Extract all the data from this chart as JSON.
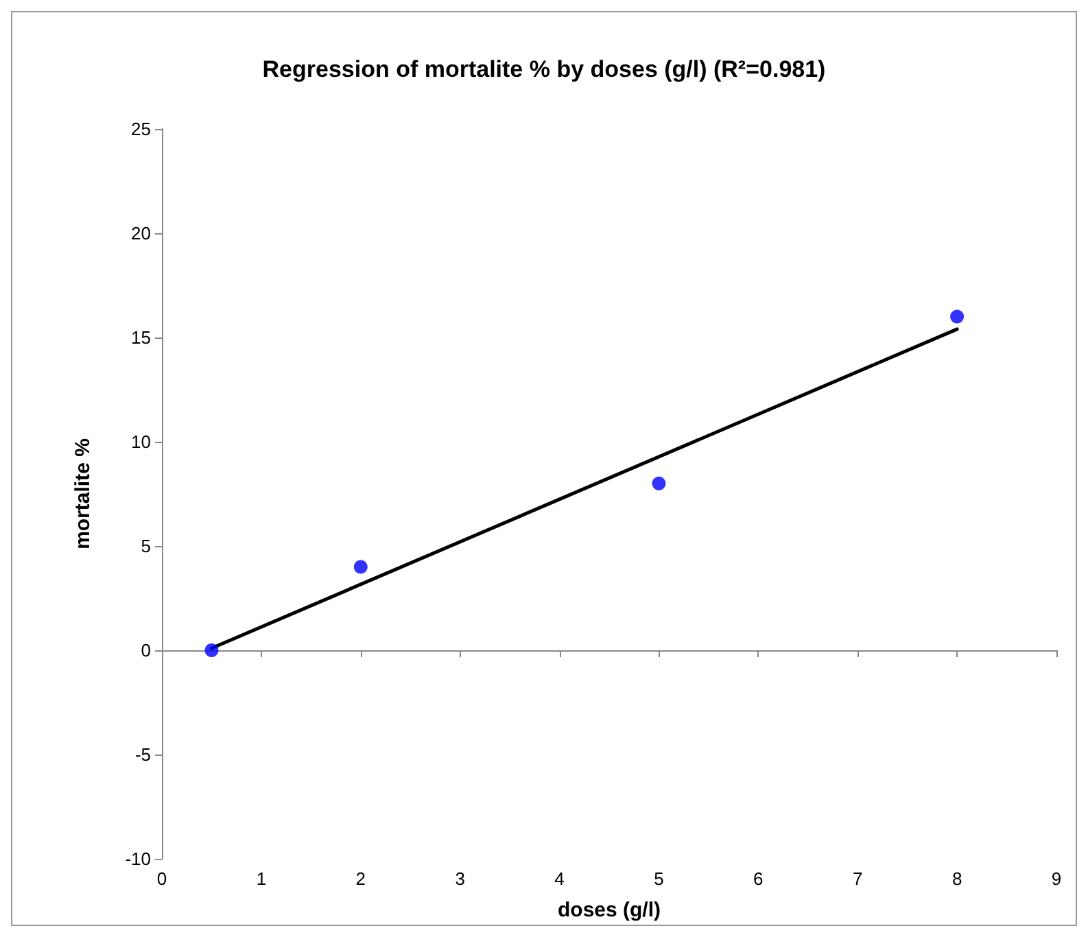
{
  "chart_data": {
    "type": "scatter",
    "title": "Regression of mortalite % by doses (g/l) (R²=0.981)",
    "xlabel": "doses (g/l)",
    "ylabel": "mortalite %",
    "xlim": [
      0,
      9
    ],
    "xticks": [
      0,
      1,
      2,
      3,
      4,
      5,
      6,
      7,
      8,
      9
    ],
    "ylim": [
      -10,
      25
    ],
    "yticks": [
      -10,
      -5,
      0,
      5,
      10,
      15,
      20,
      25
    ],
    "series": [
      {
        "color": "#0000ff",
        "marker": "circle",
        "x": [
          0.5,
          2,
          5,
          8
        ],
        "values": [
          0,
          4,
          8,
          16
        ]
      },
      {
        "type": "line",
        "color": "#000000",
        "marker": "none",
        "line_style": "solid",
        "x": [
          0.5,
          8
        ],
        "values": [
          0.1,
          15.4
        ]
      }
    ]
  }
}
